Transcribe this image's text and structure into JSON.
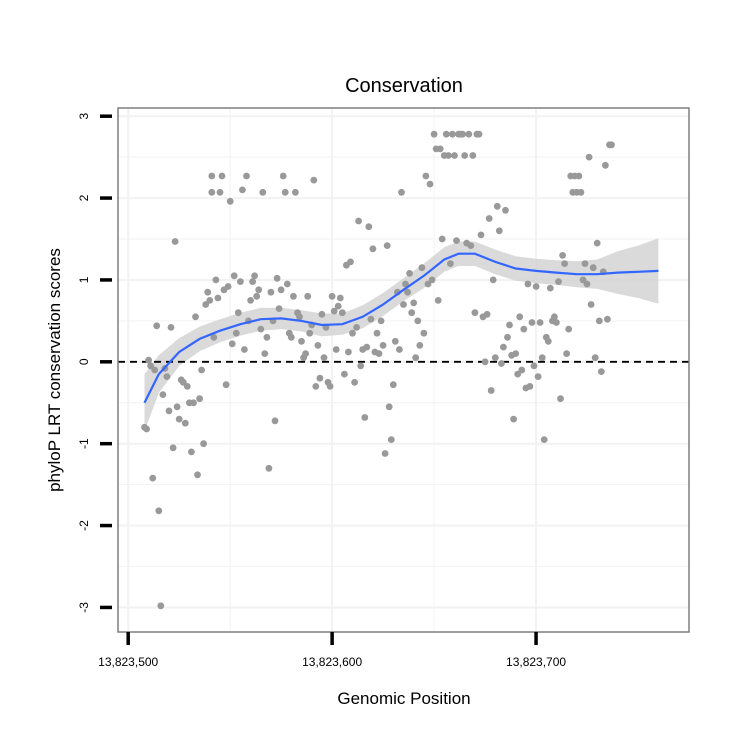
{
  "chart_data": {
    "type": "scatter",
    "title": "Conservation",
    "xlabel": "Genomic Position",
    "ylabel": "phyloP LRT conservation scores",
    "xlim": [
      13823495,
      13823775
    ],
    "ylim": [
      -3.3,
      3.1
    ],
    "xticks": [
      {
        "value": 13823500,
        "label": "13,823,500"
      },
      {
        "value": 13823600,
        "label": "13,823,600"
      },
      {
        "value": 13823700,
        "label": "13,823,700"
      }
    ],
    "yticks": [
      {
        "value": -3,
        "label": "-3"
      },
      {
        "value": -2,
        "label": "-2"
      },
      {
        "value": -1,
        "label": "-1"
      },
      {
        "value": 0,
        "label": "0"
      },
      {
        "value": 1,
        "label": "1"
      },
      {
        "value": 2,
        "label": "2"
      },
      {
        "value": 3,
        "label": "3"
      }
    ],
    "grid": true,
    "reference_line": {
      "y": 0,
      "style": "dashed"
    },
    "colors": {
      "points": "#999999",
      "smooth_line": "#3366ff",
      "ribbon": "#d3d3d3",
      "panel_border": "#7f7f7f",
      "grid": "#f2f2f2"
    },
    "points": [
      [
        13823508,
        -0.8
      ],
      [
        13823509,
        -0.82
      ],
      [
        13823510,
        0.02
      ],
      [
        13823511,
        -0.05
      ],
      [
        13823512,
        -1.42
      ],
      [
        13823513,
        -0.1
      ],
      [
        13823514,
        0.44
      ],
      [
        13823515,
        -1.82
      ],
      [
        13823516,
        -2.98
      ],
      [
        13823517,
        -0.4
      ],
      [
        13823518,
        -0.08
      ],
      [
        13823519,
        -0.18
      ],
      [
        13823520,
        -0.6
      ],
      [
        13823521,
        0.42
      ],
      [
        13823522,
        -1.05
      ],
      [
        13823523,
        1.47
      ],
      [
        13823524,
        -0.55
      ],
      [
        13823525,
        -0.7
      ],
      [
        13823526,
        -0.22
      ],
      [
        13823527,
        -0.25
      ],
      [
        13823528,
        -0.75
      ],
      [
        13823529,
        -0.3
      ],
      [
        13823530,
        -0.5
      ],
      [
        13823531,
        -1.1
      ],
      [
        13823532,
        -0.5
      ],
      [
        13823533,
        0.55
      ],
      [
        13823534,
        -1.38
      ],
      [
        13823535,
        -0.45
      ],
      [
        13823536,
        -0.1
      ],
      [
        13823537,
        -1.0
      ],
      [
        13823538,
        0.7
      ],
      [
        13823539,
        0.85
      ],
      [
        13823540,
        0.75
      ],
      [
        13823541,
        2.07
      ],
      [
        13823541,
        2.27
      ],
      [
        13823542,
        0.3
      ],
      [
        13823543,
        1.0
      ],
      [
        13823544,
        0.78
      ],
      [
        13823545,
        2.07
      ],
      [
        13823546,
        2.27
      ],
      [
        13823547,
        0.88
      ],
      [
        13823548,
        -0.28
      ],
      [
        13823549,
        0.92
      ],
      [
        13823550,
        1.96
      ],
      [
        13823551,
        0.22
      ],
      [
        13823552,
        1.05
      ],
      [
        13823553,
        0.35
      ],
      [
        13823554,
        0.6
      ],
      [
        13823555,
        0.98
      ],
      [
        13823556,
        2.1
      ],
      [
        13823557,
        0.15
      ],
      [
        13823558,
        2.27
      ],
      [
        13823559,
        0.5
      ],
      [
        13823560,
        0.75
      ],
      [
        13823561,
        0.98
      ],
      [
        13823562,
        1.05
      ],
      [
        13823563,
        0.8
      ],
      [
        13823564,
        0.88
      ],
      [
        13823565,
        0.4
      ],
      [
        13823566,
        2.07
      ],
      [
        13823567,
        0.1
      ],
      [
        13823568,
        0.3
      ],
      [
        13823569,
        -1.3
      ],
      [
        13823570,
        0.85
      ],
      [
        13823571,
        0.5
      ],
      [
        13823572,
        -0.72
      ],
      [
        13823573,
        1.02
      ],
      [
        13823574,
        0.65
      ],
      [
        13823575,
        0.88
      ],
      [
        13823576,
        2.27
      ],
      [
        13823577,
        2.07
      ],
      [
        13823578,
        0.95
      ],
      [
        13823579,
        0.35
      ],
      [
        13823580,
        0.3
      ],
      [
        13823581,
        0.8
      ],
      [
        13823582,
        2.07
      ],
      [
        13823583,
        0.6
      ],
      [
        13823584,
        0.55
      ],
      [
        13823585,
        0.25
      ],
      [
        13823586,
        0.05
      ],
      [
        13823587,
        0.1
      ],
      [
        13823588,
        0.8
      ],
      [
        13823589,
        0.35
      ],
      [
        13823590,
        0.45
      ],
      [
        13823591,
        2.22
      ],
      [
        13823592,
        -0.3
      ],
      [
        13823593,
        0.2
      ],
      [
        13823594,
        -0.2
      ],
      [
        13823595,
        0.58
      ],
      [
        13823596,
        0.05
      ],
      [
        13823597,
        0.42
      ],
      [
        13823598,
        -0.25
      ],
      [
        13823599,
        -0.3
      ],
      [
        13823600,
        0.8
      ],
      [
        13823601,
        0.62
      ],
      [
        13823602,
        0.15
      ],
      [
        13823603,
        0.68
      ],
      [
        13823604,
        0.78
      ],
      [
        13823605,
        0.6
      ],
      [
        13823606,
        -0.15
      ],
      [
        13823607,
        1.18
      ],
      [
        13823608,
        0.12
      ],
      [
        13823609,
        1.22
      ],
      [
        13823610,
        0.35
      ],
      [
        13823611,
        -0.25
      ],
      [
        13823612,
        0.42
      ],
      [
        13823613,
        1.72
      ],
      [
        13823614,
        -0.05
      ],
      [
        13823615,
        0.15
      ],
      [
        13823616,
        -0.68
      ],
      [
        13823617,
        0.18
      ],
      [
        13823618,
        1.65
      ],
      [
        13823619,
        0.52
      ],
      [
        13823620,
        1.38
      ],
      [
        13823621,
        0.12
      ],
      [
        13823622,
        0.35
      ],
      [
        13823623,
        0.1
      ],
      [
        13823624,
        0.5
      ],
      [
        13823625,
        0.2
      ],
      [
        13823626,
        -1.12
      ],
      [
        13823627,
        1.42
      ],
      [
        13823628,
        -0.55
      ],
      [
        13823629,
        -0.95
      ],
      [
        13823630,
        -0.28
      ],
      [
        13823631,
        0.25
      ],
      [
        13823632,
        0.85
      ],
      [
        13823633,
        0.15
      ],
      [
        13823634,
        2.07
      ],
      [
        13823635,
        0.7
      ],
      [
        13823636,
        0.95
      ],
      [
        13823637,
        0.85
      ],
      [
        13823638,
        1.08
      ],
      [
        13823639,
        0.6
      ],
      [
        13823640,
        0.72
      ],
      [
        13823641,
        0.05
      ],
      [
        13823642,
        0.5
      ],
      [
        13823643,
        0.2
      ],
      [
        13823644,
        1.15
      ],
      [
        13823645,
        0.35
      ],
      [
        13823646,
        2.27
      ],
      [
        13823647,
        0.95
      ],
      [
        13823648,
        2.17
      ],
      [
        13823649,
        1.0
      ],
      [
        13823650,
        2.78
      ],
      [
        13823651,
        2.6
      ],
      [
        13823652,
        0.75
      ],
      [
        13823653,
        2.6
      ],
      [
        13823654,
        1.5
      ],
      [
        13823655,
        2.52
      ],
      [
        13823656,
        2.78
      ],
      [
        13823657,
        2.52
      ],
      [
        13823658,
        1.2
      ],
      [
        13823659,
        2.78
      ],
      [
        13823660,
        2.52
      ],
      [
        13823661,
        1.48
      ],
      [
        13823662,
        2.78
      ],
      [
        13823663,
        2.78
      ],
      [
        13823664,
        2.78
      ],
      [
        13823665,
        2.52
      ],
      [
        13823666,
        1.45
      ],
      [
        13823667,
        2.78
      ],
      [
        13823668,
        1.42
      ],
      [
        13823669,
        2.52
      ],
      [
        13823670,
        0.6
      ],
      [
        13823671,
        2.78
      ],
      [
        13823672,
        2.78
      ],
      [
        13823673,
        1.55
      ],
      [
        13823674,
        0.55
      ],
      [
        13823675,
        0.0
      ],
      [
        13823676,
        0.58
      ],
      [
        13823677,
        1.75
      ],
      [
        13823678,
        -0.35
      ],
      [
        13823679,
        1.0
      ],
      [
        13823680,
        0.05
      ],
      [
        13823681,
        1.9
      ],
      [
        13823682,
        1.6
      ],
      [
        13823683,
        -0.02
      ],
      [
        13823684,
        0.18
      ],
      [
        13823685,
        1.85
      ],
      [
        13823686,
        0.3
      ],
      [
        13823687,
        0.45
      ],
      [
        13823688,
        0.08
      ],
      [
        13823689,
        -0.7
      ],
      [
        13823690,
        0.1
      ],
      [
        13823691,
        -0.15
      ],
      [
        13823692,
        0.55
      ],
      [
        13823693,
        -0.1
      ],
      [
        13823694,
        0.4
      ],
      [
        13823695,
        -0.32
      ],
      [
        13823696,
        0.95
      ],
      [
        13823697,
        -0.3
      ],
      [
        13823698,
        0.48
      ],
      [
        13823699,
        -0.05
      ],
      [
        13823700,
        0.92
      ],
      [
        13823701,
        -0.18
      ],
      [
        13823702,
        0.48
      ],
      [
        13823703,
        0.05
      ],
      [
        13823704,
        -0.95
      ],
      [
        13823705,
        0.3
      ],
      [
        13823706,
        0.25
      ],
      [
        13823707,
        0.9
      ],
      [
        13823708,
        0.5
      ],
      [
        13823709,
        0.55
      ],
      [
        13823710,
        0.48
      ],
      [
        13823711,
        0.98
      ],
      [
        13823712,
        -0.45
      ],
      [
        13823713,
        1.3
      ],
      [
        13823714,
        1.2
      ],
      [
        13823715,
        0.1
      ],
      [
        13823716,
        0.4
      ],
      [
        13823717,
        2.27
      ],
      [
        13823718,
        2.07
      ],
      [
        13823719,
        2.27
      ],
      [
        13823720,
        2.07
      ],
      [
        13823721,
        2.27
      ],
      [
        13823722,
        2.07
      ],
      [
        13823723,
        1.0
      ],
      [
        13823724,
        1.2
      ],
      [
        13823725,
        0.95
      ],
      [
        13823726,
        2.5
      ],
      [
        13823727,
        0.7
      ],
      [
        13823728,
        1.15
      ],
      [
        13823729,
        0.05
      ],
      [
        13823730,
        1.45
      ],
      [
        13823731,
        0.5
      ],
      [
        13823732,
        -0.12
      ],
      [
        13823733,
        1.1
      ],
      [
        13823734,
        2.4
      ],
      [
        13823735,
        0.52
      ],
      [
        13823736,
        2.65
      ],
      [
        13823737,
        2.65
      ]
    ],
    "smooth": [
      {
        "x": 13823508,
        "y": -0.5,
        "lo": -0.85,
        "hi": -0.15
      },
      {
        "x": 13823515,
        "y": -0.15,
        "lo": -0.38,
        "hi": 0.08
      },
      {
        "x": 13823525,
        "y": 0.12,
        "lo": -0.05,
        "hi": 0.29
      },
      {
        "x": 13823535,
        "y": 0.28,
        "lo": 0.13,
        "hi": 0.43
      },
      {
        "x": 13823545,
        "y": 0.38,
        "lo": 0.24,
        "hi": 0.52
      },
      {
        "x": 13823555,
        "y": 0.46,
        "lo": 0.32,
        "hi": 0.6
      },
      {
        "x": 13823565,
        "y": 0.52,
        "lo": 0.38,
        "hi": 0.66
      },
      {
        "x": 13823575,
        "y": 0.53,
        "lo": 0.4,
        "hi": 0.66
      },
      {
        "x": 13823585,
        "y": 0.5,
        "lo": 0.37,
        "hi": 0.63
      },
      {
        "x": 13823595,
        "y": 0.45,
        "lo": 0.31,
        "hi": 0.59
      },
      {
        "x": 13823605,
        "y": 0.46,
        "lo": 0.33,
        "hi": 0.59
      },
      {
        "x": 13823615,
        "y": 0.55,
        "lo": 0.41,
        "hi": 0.69
      },
      {
        "x": 13823625,
        "y": 0.7,
        "lo": 0.56,
        "hi": 0.84
      },
      {
        "x": 13823635,
        "y": 0.88,
        "lo": 0.74,
        "hi": 1.02
      },
      {
        "x": 13823645,
        "y": 1.05,
        "lo": 0.9,
        "hi": 1.2
      },
      {
        "x": 13823655,
        "y": 1.25,
        "lo": 1.1,
        "hi": 1.4
      },
      {
        "x": 13823662,
        "y": 1.32,
        "lo": 1.17,
        "hi": 1.47
      },
      {
        "x": 13823670,
        "y": 1.32,
        "lo": 1.17,
        "hi": 1.47
      },
      {
        "x": 13823680,
        "y": 1.22,
        "lo": 1.07,
        "hi": 1.37
      },
      {
        "x": 13823690,
        "y": 1.14,
        "lo": 0.99,
        "hi": 1.29
      },
      {
        "x": 13823700,
        "y": 1.11,
        "lo": 0.96,
        "hi": 1.26
      },
      {
        "x": 13823710,
        "y": 1.09,
        "lo": 0.94,
        "hi": 1.24
      },
      {
        "x": 13823720,
        "y": 1.07,
        "lo": 0.91,
        "hi": 1.23
      },
      {
        "x": 13823730,
        "y": 1.07,
        "lo": 0.89,
        "hi": 1.25
      },
      {
        "x": 13823740,
        "y": 1.09,
        "lo": 0.83,
        "hi": 1.35
      },
      {
        "x": 13823750,
        "y": 1.1,
        "lo": 0.78,
        "hi": 1.42
      },
      {
        "x": 13823760,
        "y": 1.11,
        "lo": 0.71,
        "hi": 1.51
      }
    ]
  }
}
